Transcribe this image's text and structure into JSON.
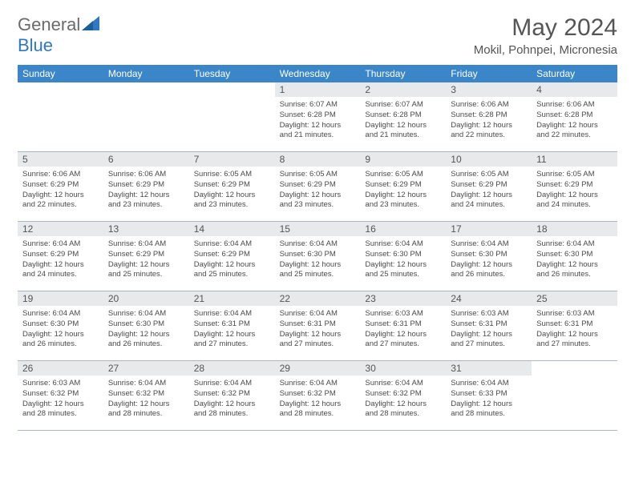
{
  "logo": {
    "text1": "General",
    "text2": "Blue"
  },
  "header": {
    "month_title": "May 2024",
    "location": "Mokil, Pohnpei, Micronesia"
  },
  "colors": {
    "header_bar": "#3a86c8",
    "header_text": "#ffffff",
    "daynum_bg": "#e7e9eb",
    "logo_gray": "#6a6a6a",
    "logo_blue": "#2f78c2",
    "cell_text": "#4a4a4a",
    "rule": "#aab6c2"
  },
  "day_names": [
    "Sunday",
    "Monday",
    "Tuesday",
    "Wednesday",
    "Thursday",
    "Friday",
    "Saturday"
  ],
  "weeks": [
    [
      {
        "n": "",
        "sunrise": "",
        "sunset": "",
        "daylight": ""
      },
      {
        "n": "",
        "sunrise": "",
        "sunset": "",
        "daylight": ""
      },
      {
        "n": "",
        "sunrise": "",
        "sunset": "",
        "daylight": ""
      },
      {
        "n": "1",
        "sunrise": "Sunrise: 6:07 AM",
        "sunset": "Sunset: 6:28 PM",
        "daylight": "Daylight: 12 hours and 21 minutes."
      },
      {
        "n": "2",
        "sunrise": "Sunrise: 6:07 AM",
        "sunset": "Sunset: 6:28 PM",
        "daylight": "Daylight: 12 hours and 21 minutes."
      },
      {
        "n": "3",
        "sunrise": "Sunrise: 6:06 AM",
        "sunset": "Sunset: 6:28 PM",
        "daylight": "Daylight: 12 hours and 22 minutes."
      },
      {
        "n": "4",
        "sunrise": "Sunrise: 6:06 AM",
        "sunset": "Sunset: 6:28 PM",
        "daylight": "Daylight: 12 hours and 22 minutes."
      }
    ],
    [
      {
        "n": "5",
        "sunrise": "Sunrise: 6:06 AM",
        "sunset": "Sunset: 6:29 PM",
        "daylight": "Daylight: 12 hours and 22 minutes."
      },
      {
        "n": "6",
        "sunrise": "Sunrise: 6:06 AM",
        "sunset": "Sunset: 6:29 PM",
        "daylight": "Daylight: 12 hours and 23 minutes."
      },
      {
        "n": "7",
        "sunrise": "Sunrise: 6:05 AM",
        "sunset": "Sunset: 6:29 PM",
        "daylight": "Daylight: 12 hours and 23 minutes."
      },
      {
        "n": "8",
        "sunrise": "Sunrise: 6:05 AM",
        "sunset": "Sunset: 6:29 PM",
        "daylight": "Daylight: 12 hours and 23 minutes."
      },
      {
        "n": "9",
        "sunrise": "Sunrise: 6:05 AM",
        "sunset": "Sunset: 6:29 PM",
        "daylight": "Daylight: 12 hours and 23 minutes."
      },
      {
        "n": "10",
        "sunrise": "Sunrise: 6:05 AM",
        "sunset": "Sunset: 6:29 PM",
        "daylight": "Daylight: 12 hours and 24 minutes."
      },
      {
        "n": "11",
        "sunrise": "Sunrise: 6:05 AM",
        "sunset": "Sunset: 6:29 PM",
        "daylight": "Daylight: 12 hours and 24 minutes."
      }
    ],
    [
      {
        "n": "12",
        "sunrise": "Sunrise: 6:04 AM",
        "sunset": "Sunset: 6:29 PM",
        "daylight": "Daylight: 12 hours and 24 minutes."
      },
      {
        "n": "13",
        "sunrise": "Sunrise: 6:04 AM",
        "sunset": "Sunset: 6:29 PM",
        "daylight": "Daylight: 12 hours and 25 minutes."
      },
      {
        "n": "14",
        "sunrise": "Sunrise: 6:04 AM",
        "sunset": "Sunset: 6:29 PM",
        "daylight": "Daylight: 12 hours and 25 minutes."
      },
      {
        "n": "15",
        "sunrise": "Sunrise: 6:04 AM",
        "sunset": "Sunset: 6:30 PM",
        "daylight": "Daylight: 12 hours and 25 minutes."
      },
      {
        "n": "16",
        "sunrise": "Sunrise: 6:04 AM",
        "sunset": "Sunset: 6:30 PM",
        "daylight": "Daylight: 12 hours and 25 minutes."
      },
      {
        "n": "17",
        "sunrise": "Sunrise: 6:04 AM",
        "sunset": "Sunset: 6:30 PM",
        "daylight": "Daylight: 12 hours and 26 minutes."
      },
      {
        "n": "18",
        "sunrise": "Sunrise: 6:04 AM",
        "sunset": "Sunset: 6:30 PM",
        "daylight": "Daylight: 12 hours and 26 minutes."
      }
    ],
    [
      {
        "n": "19",
        "sunrise": "Sunrise: 6:04 AM",
        "sunset": "Sunset: 6:30 PM",
        "daylight": "Daylight: 12 hours and 26 minutes."
      },
      {
        "n": "20",
        "sunrise": "Sunrise: 6:04 AM",
        "sunset": "Sunset: 6:30 PM",
        "daylight": "Daylight: 12 hours and 26 minutes."
      },
      {
        "n": "21",
        "sunrise": "Sunrise: 6:04 AM",
        "sunset": "Sunset: 6:31 PM",
        "daylight": "Daylight: 12 hours and 27 minutes."
      },
      {
        "n": "22",
        "sunrise": "Sunrise: 6:04 AM",
        "sunset": "Sunset: 6:31 PM",
        "daylight": "Daylight: 12 hours and 27 minutes."
      },
      {
        "n": "23",
        "sunrise": "Sunrise: 6:03 AM",
        "sunset": "Sunset: 6:31 PM",
        "daylight": "Daylight: 12 hours and 27 minutes."
      },
      {
        "n": "24",
        "sunrise": "Sunrise: 6:03 AM",
        "sunset": "Sunset: 6:31 PM",
        "daylight": "Daylight: 12 hours and 27 minutes."
      },
      {
        "n": "25",
        "sunrise": "Sunrise: 6:03 AM",
        "sunset": "Sunset: 6:31 PM",
        "daylight": "Daylight: 12 hours and 27 minutes."
      }
    ],
    [
      {
        "n": "26",
        "sunrise": "Sunrise: 6:03 AM",
        "sunset": "Sunset: 6:32 PM",
        "daylight": "Daylight: 12 hours and 28 minutes."
      },
      {
        "n": "27",
        "sunrise": "Sunrise: 6:04 AM",
        "sunset": "Sunset: 6:32 PM",
        "daylight": "Daylight: 12 hours and 28 minutes."
      },
      {
        "n": "28",
        "sunrise": "Sunrise: 6:04 AM",
        "sunset": "Sunset: 6:32 PM",
        "daylight": "Daylight: 12 hours and 28 minutes."
      },
      {
        "n": "29",
        "sunrise": "Sunrise: 6:04 AM",
        "sunset": "Sunset: 6:32 PM",
        "daylight": "Daylight: 12 hours and 28 minutes."
      },
      {
        "n": "30",
        "sunrise": "Sunrise: 6:04 AM",
        "sunset": "Sunset: 6:32 PM",
        "daylight": "Daylight: 12 hours and 28 minutes."
      },
      {
        "n": "31",
        "sunrise": "Sunrise: 6:04 AM",
        "sunset": "Sunset: 6:33 PM",
        "daylight": "Daylight: 12 hours and 28 minutes."
      },
      {
        "n": "",
        "sunrise": "",
        "sunset": "",
        "daylight": ""
      }
    ]
  ]
}
